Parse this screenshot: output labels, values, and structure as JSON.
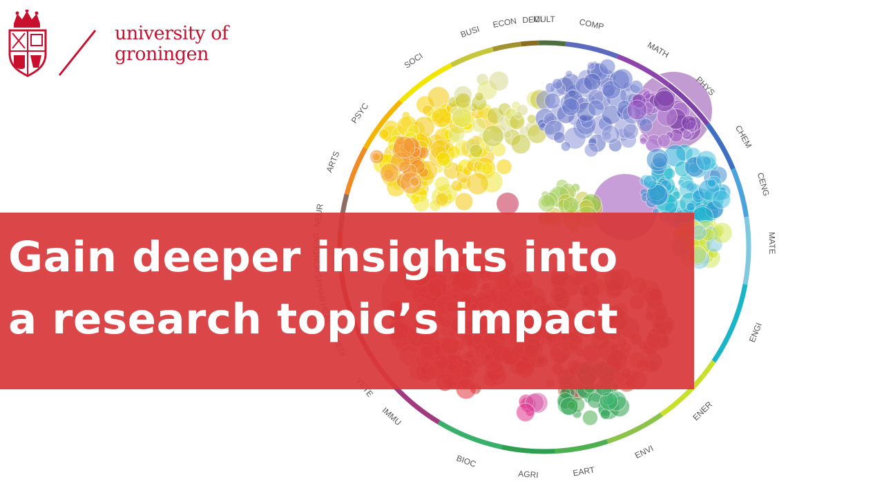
{
  "brand": {
    "line1": "university of",
    "line2": "groningen",
    "color": "#c8102e"
  },
  "headline": {
    "line1": "Gain deeper insights into",
    "line2": "a research topic’s impact"
  },
  "banner_color": "#d8383a",
  "subject_ring": [
    {
      "label": "COMP",
      "color": "#5b6abf"
    },
    {
      "label": "MATH",
      "color": "#8e44ad"
    },
    {
      "label": "PHYS",
      "color": "#7d3fa8"
    },
    {
      "label": "CHEM",
      "color": "#3f6fc0"
    },
    {
      "label": "CENG",
      "color": "#4aa3df"
    },
    {
      "label": "MATE",
      "color": "#7fc8e0"
    },
    {
      "label": "ENGI",
      "color": "#1ab6c8"
    },
    {
      "label": "ENER",
      "color": "#c9e02a"
    },
    {
      "label": "ENVI",
      "color": "#8bc34a"
    },
    {
      "label": "EART",
      "color": "#4caf50"
    },
    {
      "label": "AGRI",
      "color": "#2e9e4f"
    },
    {
      "label": "BIOC",
      "color": "#38b06a"
    },
    {
      "label": "IMMU",
      "color": "#a0397e"
    },
    {
      "label": "VETE",
      "color": "#e0338c"
    },
    {
      "label": "MEDI",
      "color": "#d0302f"
    },
    {
      "label": "HEAL",
      "color": "#c62828"
    },
    {
      "label": "PHAR",
      "color": "#b71c1c"
    },
    {
      "label": "NURS",
      "color": "#d84315"
    },
    {
      "label": "DENT",
      "color": "#bf360c"
    },
    {
      "label": "NEUR",
      "color": "#8d6e63"
    },
    {
      "label": "ARTS",
      "color": "#f08a24"
    },
    {
      "label": "PSYC",
      "color": "#f5b400"
    },
    {
      "label": "SOCI",
      "color": "#f2e600"
    },
    {
      "label": "BUSI",
      "color": "#c6c63a"
    },
    {
      "label": "ECON",
      "color": "#a0922e"
    },
    {
      "label": "DECI",
      "color": "#8a6d1e"
    },
    {
      "label": "MULT",
      "color": "#4f6e3e"
    }
  ]
}
